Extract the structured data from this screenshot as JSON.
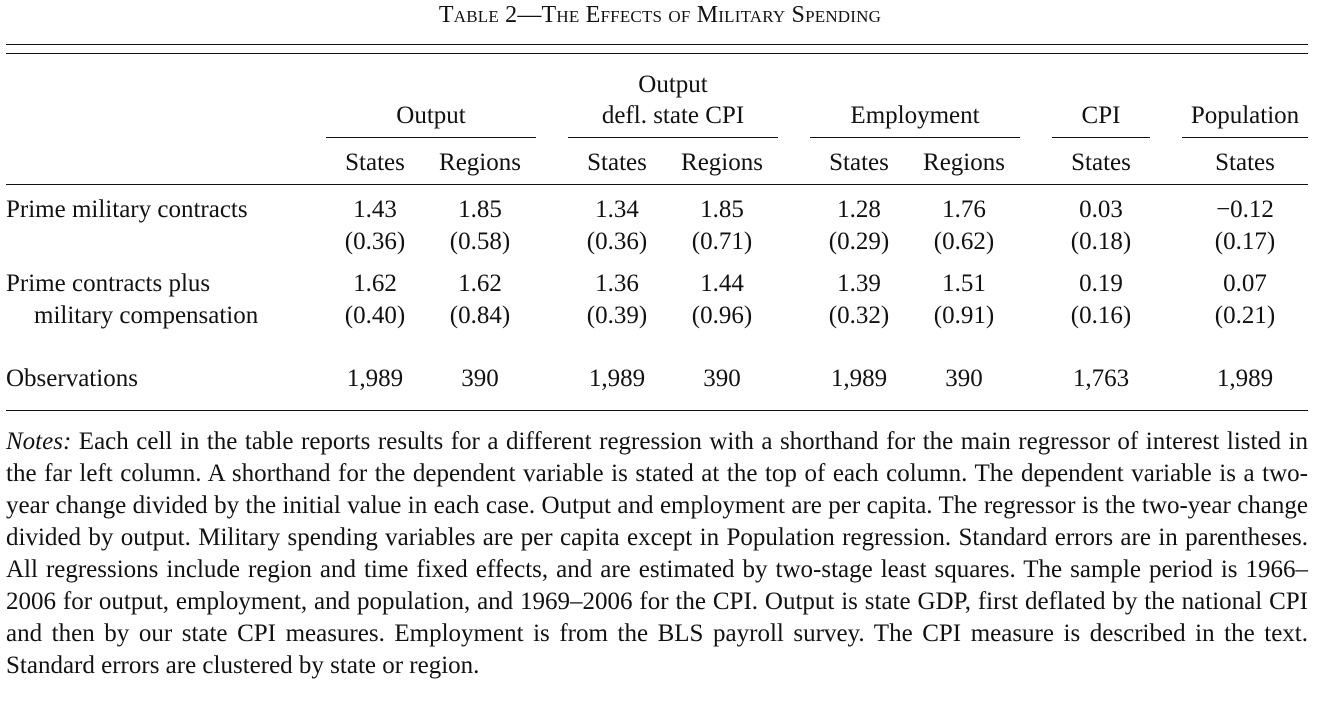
{
  "title": "Table 2—The Effects of Military Spending",
  "column_groups": [
    {
      "line1": "",
      "line2": "Output"
    },
    {
      "line1": "Output",
      "line2": "defl. state CPI"
    },
    {
      "line1": "",
      "line2": "Employment"
    },
    {
      "line1": "",
      "line2": "CPI"
    },
    {
      "line1": "",
      "line2": "Population"
    }
  ],
  "subheaders": [
    "States",
    "Regions",
    "States",
    "Regions",
    "States",
    "Regions",
    "States",
    "States"
  ],
  "rows": [
    {
      "label1": "Prime military contracts",
      "label2": "",
      "coef": [
        "1.43",
        "1.85",
        "1.34",
        "1.85",
        "1.28",
        "1.76",
        "0.03",
        "−0.12"
      ],
      "se": [
        "(0.36)",
        "(0.58)",
        "(0.36)",
        "(0.71)",
        "(0.29)",
        "(0.62)",
        "(0.18)",
        "(0.17)"
      ]
    },
    {
      "label1": "Prime contracts plus",
      "label2": "military compensation",
      "coef": [
        "1.62",
        "1.62",
        "1.36",
        "1.44",
        "1.39",
        "1.51",
        "0.19",
        "0.07"
      ],
      "se": [
        "(0.40)",
        "(0.84)",
        "(0.39)",
        "(0.96)",
        "(0.32)",
        "(0.91)",
        "(0.16)",
        "(0.21)"
      ]
    }
  ],
  "observations": {
    "label": "Observations",
    "values": [
      "1,989",
      "390",
      "1,989",
      "390",
      "1,989",
      "390",
      "1,763",
      "1,989"
    ]
  },
  "notes": {
    "lead": "Notes:",
    "text": "Each cell in the table reports results for a different regression with a shorthand for the main regressor of interest listed in the far left column. A shorthand for the dependent variable is stated at the top of each column. The dependent variable is a two-year change divided by the initial value in each case. Output and employment are per capita. The regressor is the two-year change divided by output. Military spending variables are per capita except in Population regression. Standard errors are in parentheses. All regressions include region and time fixed effects, and are estimated by two-stage least squares. The sample period is 1966–2006 for output, employment, and population, and 1969–2006 for the CPI. Output is state GDP, first deflated by the national CPI and then by our state CPI measures. Employment is from the BLS payroll survey. The CPI measure is described in the text. Standard errors are clustered by state or region."
  }
}
